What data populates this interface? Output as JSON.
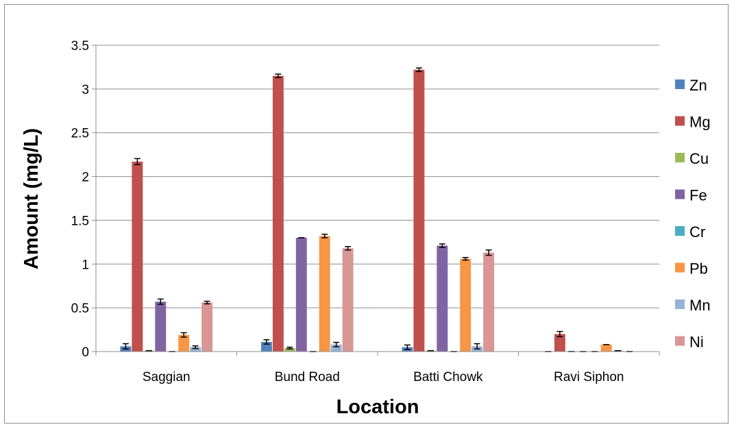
{
  "chart_data": {
    "type": "bar",
    "title": "",
    "xlabel": "Location",
    "ylabel": "Amount (mg/L)",
    "ylim": [
      0,
      3.5
    ],
    "yticks": [
      "0",
      "0.5",
      "1",
      "1.5",
      "2",
      "2.5",
      "3",
      "3.5"
    ],
    "categories": [
      "Saggian",
      "Bund Road",
      "Batti Chowk",
      "Ravi Siphon"
    ],
    "grid": "horizontal",
    "legend_position": "right",
    "series": [
      {
        "name": "Zn",
        "color": "#4f81bd",
        "values": [
          0.06,
          0.11,
          0.05,
          0.0
        ],
        "errors": [
          0.03,
          0.025,
          0.025,
          0.0
        ]
      },
      {
        "name": "Mg",
        "color": "#c0504d",
        "values": [
          2.17,
          3.15,
          3.22,
          0.2
        ],
        "errors": [
          0.035,
          0.02,
          0.02,
          0.03
        ]
      },
      {
        "name": "Cu",
        "color": "#9bbb59",
        "values": [
          0.01,
          0.04,
          0.01,
          0.0
        ],
        "errors": [
          0.0,
          0.01,
          0.0,
          0.0
        ]
      },
      {
        "name": "Fe",
        "color": "#8064a2",
        "values": [
          0.57,
          1.3,
          1.21,
          0.0
        ],
        "errors": [
          0.03,
          0.0,
          0.02,
          0.0
        ]
      },
      {
        "name": "Cr",
        "color": "#4bacc6",
        "values": [
          0.0,
          0.0,
          0.0,
          0.0
        ],
        "errors": [
          0.0,
          0.0,
          0.0,
          0.0
        ]
      },
      {
        "name": "Pb",
        "color": "#f79646",
        "values": [
          0.19,
          1.32,
          1.06,
          0.08
        ],
        "errors": [
          0.025,
          0.02,
          0.015,
          0.0
        ]
      },
      {
        "name": "Mn",
        "color": "#95b3d7",
        "values": [
          0.05,
          0.08,
          0.06,
          0.01
        ],
        "errors": [
          0.015,
          0.025,
          0.03,
          0.0
        ]
      },
      {
        "name": "Ni",
        "color": "#d99694",
        "values": [
          0.56,
          1.18,
          1.13,
          0.0
        ],
        "errors": [
          0.015,
          0.02,
          0.03,
          0.0
        ]
      }
    ]
  }
}
